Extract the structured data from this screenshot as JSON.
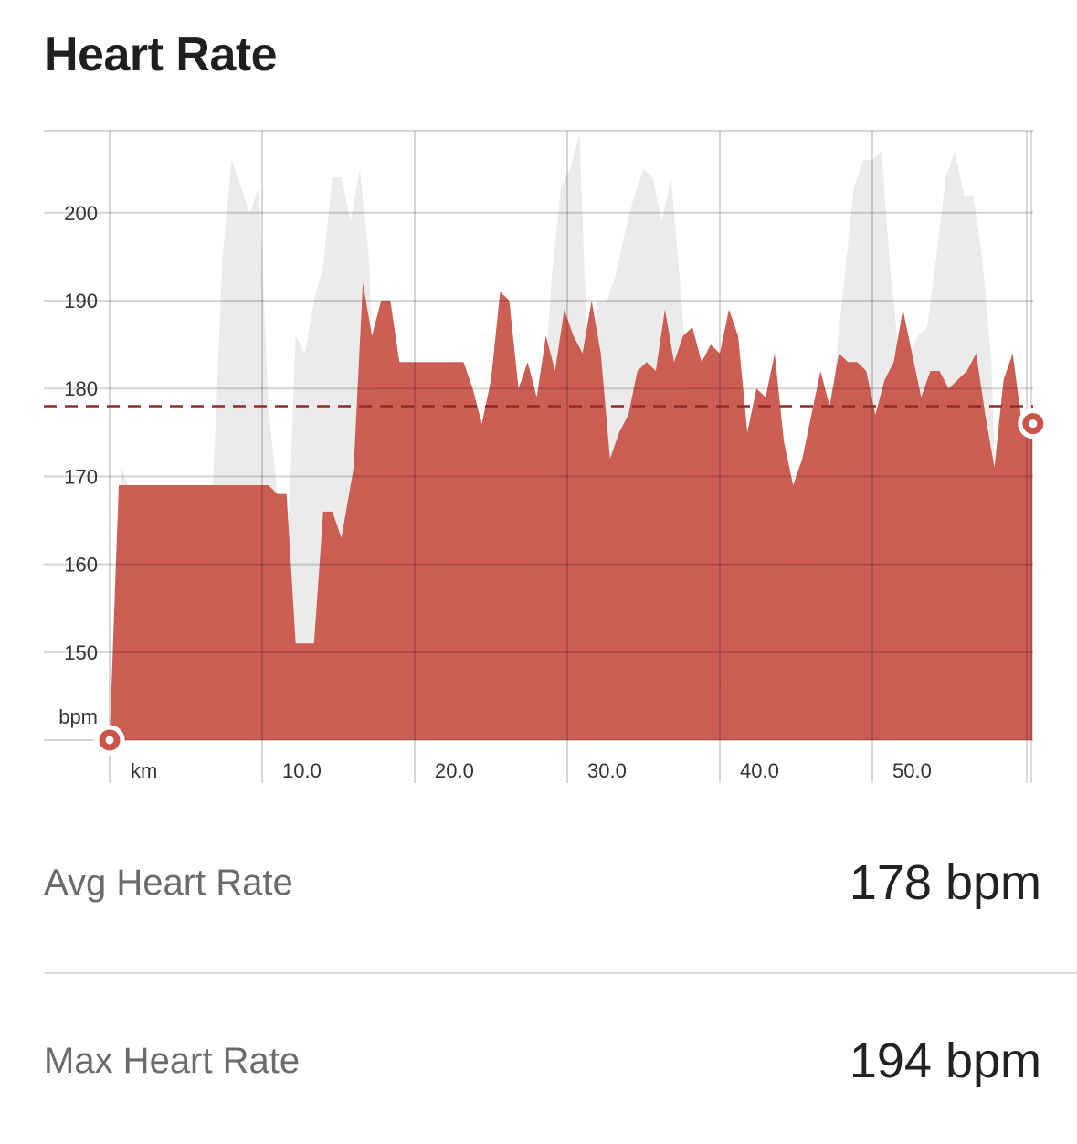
{
  "header": {
    "title": "Heart Rate"
  },
  "colors": {
    "hr_fill": "#c9554a",
    "bg_series": "#ebebeb",
    "avg_line": "#8e2d27",
    "grid": "#d7d7d7"
  },
  "chart_data": {
    "type": "area",
    "ylabel": "bpm",
    "xlabel": "km",
    "ylim": [
      140,
      210
    ],
    "xlim": [
      0,
      60.5
    ],
    "y_ticks": [
      "150",
      "160",
      "170",
      "180",
      "190",
      "200"
    ],
    "y_tick_values": [
      150,
      160,
      170,
      180,
      190,
      200
    ],
    "x_ticks": [
      "10.0",
      "20.0",
      "30.0",
      "40.0",
      "50.0"
    ],
    "x_tick_values": [
      10,
      20,
      30,
      40,
      50
    ],
    "average": 178,
    "grid": true,
    "series": [
      {
        "values": [
          [
            0,
            140
          ],
          [
            0.6,
            169
          ],
          [
            10.4,
            169
          ],
          [
            11,
            168
          ],
          [
            11.6,
            168
          ],
          [
            12.2,
            151
          ],
          [
            13.4,
            151
          ],
          [
            14,
            166
          ],
          [
            14.6,
            166
          ],
          [
            15.2,
            163
          ],
          [
            16,
            171
          ],
          [
            16.6,
            192
          ],
          [
            17.2,
            186
          ],
          [
            17.8,
            190
          ],
          [
            18.4,
            190
          ],
          [
            19,
            183
          ],
          [
            23.2,
            183
          ],
          [
            23.8,
            180
          ],
          [
            24.4,
            176
          ],
          [
            25,
            181
          ],
          [
            25.6,
            191
          ],
          [
            26.2,
            190
          ],
          [
            26.8,
            180
          ],
          [
            27.4,
            183
          ],
          [
            28,
            179
          ],
          [
            28.6,
            186
          ],
          [
            29.2,
            182
          ],
          [
            29.8,
            189
          ],
          [
            30.4,
            186
          ],
          [
            31,
            184
          ],
          [
            31.6,
            190
          ],
          [
            32.2,
            184
          ],
          [
            32.8,
            172
          ],
          [
            33.4,
            175
          ],
          [
            34,
            177
          ],
          [
            34.6,
            182
          ],
          [
            35.2,
            183
          ],
          [
            35.8,
            182
          ],
          [
            36.4,
            189
          ],
          [
            37,
            183
          ],
          [
            37.6,
            186
          ],
          [
            38.2,
            187
          ],
          [
            38.8,
            183
          ],
          [
            39.4,
            185
          ],
          [
            40,
            184
          ],
          [
            40.6,
            189
          ],
          [
            41.2,
            186
          ],
          [
            41.8,
            175
          ],
          [
            42.4,
            180
          ],
          [
            43,
            179
          ],
          [
            43.6,
            184
          ],
          [
            44.2,
            174
          ],
          [
            44.8,
            169
          ],
          [
            45.4,
            172
          ],
          [
            46,
            177
          ],
          [
            46.6,
            182
          ],
          [
            47.2,
            178
          ],
          [
            47.8,
            184
          ],
          [
            48.4,
            183
          ],
          [
            49,
            183
          ],
          [
            49.6,
            182
          ],
          [
            50.2,
            177
          ],
          [
            50.8,
            181
          ],
          [
            51.4,
            183
          ],
          [
            52,
            189
          ],
          [
            52.6,
            184
          ],
          [
            53.2,
            179
          ],
          [
            53.8,
            182
          ],
          [
            54.4,
            182
          ],
          [
            55,
            180
          ],
          [
            55.6,
            181
          ],
          [
            56.2,
            182
          ],
          [
            56.8,
            184
          ],
          [
            57.4,
            177
          ],
          [
            58,
            171
          ],
          [
            58.6,
            181
          ],
          [
            59.2,
            184
          ],
          [
            59.8,
            176
          ],
          [
            60.5,
            176
          ]
        ]
      },
      {
        "values": [
          [
            0,
            140
          ],
          [
            0.4,
            160
          ],
          [
            0.8,
            171
          ],
          [
            1.4,
            168
          ],
          [
            2,
            150
          ],
          [
            2.6,
            143
          ],
          [
            3.2,
            149
          ],
          [
            3.8,
            149
          ],
          [
            4.4,
            149
          ],
          [
            5,
            145
          ],
          [
            5.6,
            150
          ],
          [
            6.2,
            162
          ],
          [
            6.8,
            170
          ],
          [
            7.4,
            195
          ],
          [
            8,
            206
          ],
          [
            8.6,
            203
          ],
          [
            9.2,
            200
          ],
          [
            9.8,
            203
          ],
          [
            10.4,
            178
          ],
          [
            11,
            168
          ],
          [
            11.6,
            158
          ],
          [
            12.2,
            186
          ],
          [
            12.8,
            184
          ],
          [
            13.4,
            190
          ],
          [
            14,
            194
          ],
          [
            14.6,
            204
          ],
          [
            15.2,
            204
          ],
          [
            15.8,
            199
          ],
          [
            16.4,
            205
          ],
          [
            17,
            195
          ],
          [
            17.6,
            162
          ],
          [
            18.2,
            147
          ],
          [
            18.8,
            142
          ],
          [
            19.4,
            145
          ],
          [
            20,
            163
          ],
          [
            20.6,
            154
          ],
          [
            21.2,
            170
          ],
          [
            21.8,
            162
          ],
          [
            22.4,
            148
          ],
          [
            23,
            142
          ],
          [
            23.6,
            141
          ],
          [
            24.2,
            151
          ],
          [
            24.8,
            145
          ],
          [
            25.4,
            143
          ],
          [
            26,
            145
          ],
          [
            26.6,
            145
          ],
          [
            27.2,
            148
          ],
          [
            27.8,
            160
          ],
          [
            28.4,
            178
          ],
          [
            29,
            193
          ],
          [
            29.6,
            203
          ],
          [
            30.2,
            205
          ],
          [
            30.8,
            209
          ],
          [
            31.4,
            180
          ],
          [
            32,
            190
          ],
          [
            32.6,
            190
          ],
          [
            33.2,
            193
          ],
          [
            33.8,
            198
          ],
          [
            34.4,
            202
          ],
          [
            35,
            205
          ],
          [
            35.6,
            204
          ],
          [
            36.2,
            199
          ],
          [
            36.8,
            204
          ],
          [
            37.4,
            192
          ],
          [
            38,
            178
          ],
          [
            38.6,
            151
          ],
          [
            39.2,
            151
          ],
          [
            39.8,
            150
          ],
          [
            40.4,
            145
          ],
          [
            41,
            162
          ],
          [
            41.6,
            164
          ],
          [
            42.2,
            171
          ],
          [
            42.8,
            167
          ],
          [
            43.4,
            168
          ],
          [
            44,
            153
          ],
          [
            44.6,
            141
          ],
          [
            45.2,
            145
          ],
          [
            45.8,
            146
          ],
          [
            46.4,
            153
          ],
          [
            47,
            164
          ],
          [
            47.6,
            183
          ],
          [
            48.2,
            193
          ],
          [
            48.8,
            203
          ],
          [
            49.4,
            206
          ],
          [
            50,
            206
          ],
          [
            50.6,
            207
          ],
          [
            51.2,
            193
          ],
          [
            51.8,
            183
          ],
          [
            52.4,
            184
          ],
          [
            53,
            186
          ],
          [
            53.6,
            187
          ],
          [
            54.2,
            195
          ],
          [
            54.8,
            204
          ],
          [
            55.4,
            207
          ],
          [
            56,
            202
          ],
          [
            56.6,
            202
          ],
          [
            57.2,
            195
          ],
          [
            57.8,
            183
          ],
          [
            58.4,
            151
          ],
          [
            59,
            150
          ],
          [
            59.6,
            166
          ],
          [
            60.5,
            160
          ]
        ]
      }
    ]
  },
  "axis": {
    "unit_y": "bpm",
    "unit_x": "km"
  },
  "stats": [
    {
      "label": "Avg Heart Rate",
      "value": "178 bpm"
    },
    {
      "label": "Max Heart Rate",
      "value": "194 bpm"
    }
  ]
}
